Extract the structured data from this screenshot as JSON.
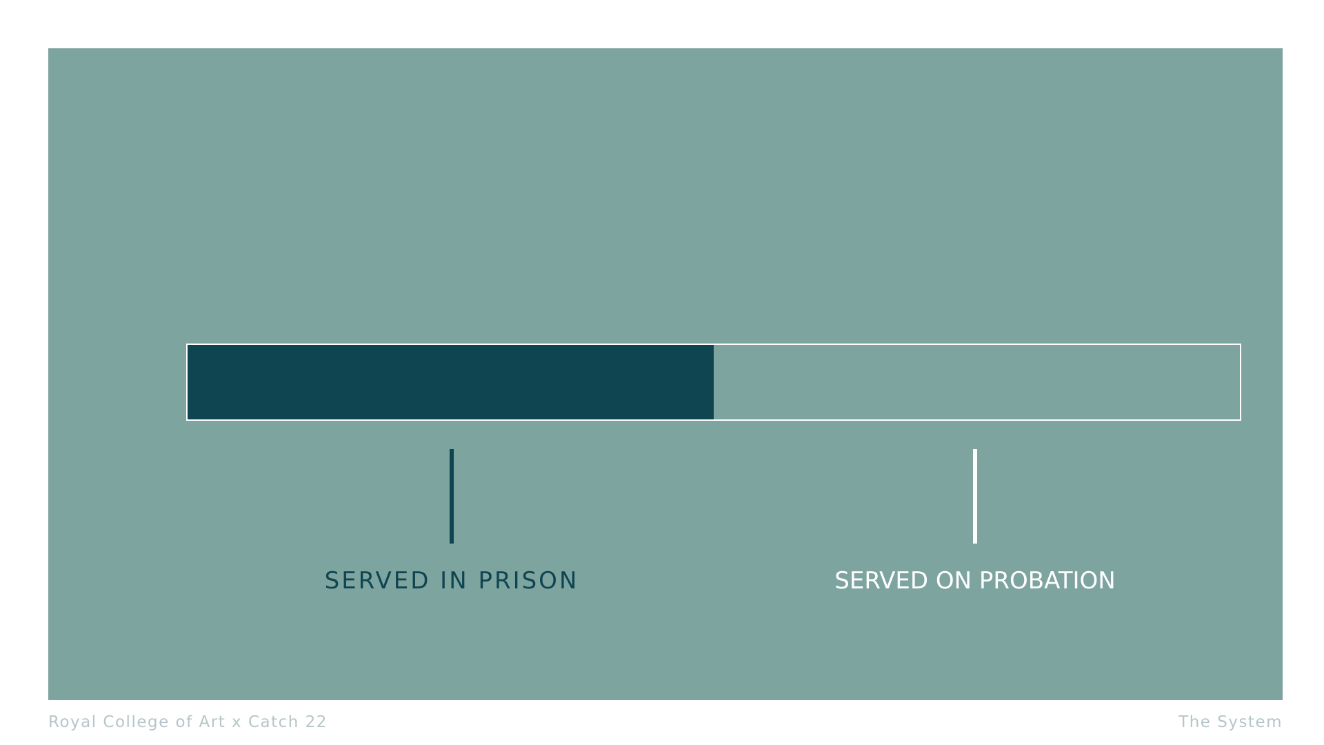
{
  "slide": {
    "split": {
      "prison_fraction": 0.5,
      "prison_label": "SERVED IN PRISON",
      "probation_label": "SERVED ON PROBATION"
    },
    "colors": {
      "panel": "#7ea4a0",
      "prison": "#0f4550",
      "probation": "#ffffff",
      "footer_text": "#b6c6c8"
    }
  },
  "footer": {
    "left": "Royal College of Art x Catch 22",
    "right": "The System"
  }
}
